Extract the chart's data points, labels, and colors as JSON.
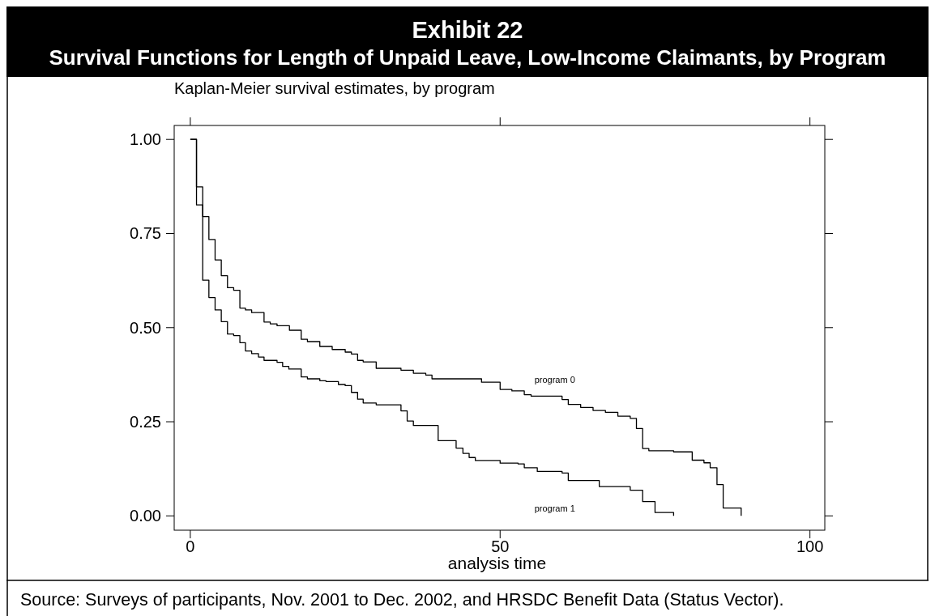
{
  "chart_data": {
    "type": "step",
    "title": "Exhibit 22",
    "subtitle": "Survival Functions for Length of Unpaid Leave, Low-Income Claimants, by Program",
    "xlabel": "analysis time",
    "annotations": [
      "Kaplan-Meier survival estimates, by program",
      "Source: Surveys of participants, Nov. 2001 to Dec. 2002, and HRSDC Benefit Data (Status Vector)."
    ],
    "series": [
      {
        "name": "program 0",
        "color": "#000000",
        "x": [
          0,
          1,
          2,
          3,
          4,
          5,
          6,
          7,
          8,
          8.9,
          9.9,
          11.9,
          12.9,
          14,
          16,
          17.9,
          18.9,
          20.9,
          22.9,
          25,
          26,
          27,
          27.9,
          30,
          34,
          36,
          38,
          39,
          47,
          50,
          51.9,
          53.9,
          55,
          60,
          61,
          63,
          65,
          67,
          69,
          71,
          72,
          73,
          74,
          78,
          81,
          82.9,
          83.9,
          85,
          86,
          88.9
        ],
        "values": [
          1,
          0.874,
          0.795,
          0.734,
          0.68,
          0.638,
          0.606,
          0.599,
          0.552,
          0.547,
          0.54,
          0.515,
          0.51,
          0.505,
          0.493,
          0.469,
          0.463,
          0.45,
          0.442,
          0.435,
          0.43,
          0.413,
          0.409,
          0.392,
          0.387,
          0.379,
          0.374,
          0.364,
          0.355,
          0.336,
          0.332,
          0.322,
          0.318,
          0.309,
          0.296,
          0.288,
          0.28,
          0.275,
          0.265,
          0.259,
          0.232,
          0.179,
          0.173,
          0.17,
          0.148,
          0.141,
          0.128,
          0.083,
          0.021,
          0
        ]
      },
      {
        "name": "program 1",
        "color": "#000000",
        "x": [
          0,
          1,
          2,
          3,
          4,
          5,
          6,
          7,
          8,
          8.9,
          9.9,
          11,
          11.9,
          14,
          14.9,
          15.9,
          17.9,
          18.9,
          20.9,
          21.9,
          23.9,
          25,
          26,
          27,
          27.9,
          30,
          34,
          35,
          36,
          40,
          42.9,
          44,
          45,
          46,
          50,
          52.9,
          53.9,
          56,
          60,
          61,
          66,
          71,
          73,
          75,
          78
        ],
        "values": [
          1,
          0.826,
          0.626,
          0.58,
          0.547,
          0.516,
          0.483,
          0.479,
          0.46,
          0.438,
          0.431,
          0.422,
          0.413,
          0.408,
          0.397,
          0.39,
          0.369,
          0.364,
          0.359,
          0.357,
          0.349,
          0.346,
          0.328,
          0.31,
          0.3,
          0.295,
          0.279,
          0.252,
          0.24,
          0.2,
          0.18,
          0.166,
          0.155,
          0.147,
          0.14,
          0.138,
          0.128,
          0.118,
          0.114,
          0.094,
          0.078,
          0.068,
          0.038,
          0.009,
          0
        ]
      }
    ],
    "xlim": [
      -2.6,
      102.4
    ],
    "xticks": [
      0,
      50,
      100
    ],
    "ylim": [
      -0.038,
      1.037
    ],
    "yticks": [
      {
        "value": 0,
        "label": "0.00"
      },
      {
        "value": 0.25,
        "label": "0.25"
      },
      {
        "value": 0.5,
        "label": "0.50"
      },
      {
        "value": 0.75,
        "label": "0.75"
      },
      {
        "value": 1,
        "label": "1.00"
      }
    ],
    "grid": false,
    "legend": false,
    "line_style": "solid"
  }
}
